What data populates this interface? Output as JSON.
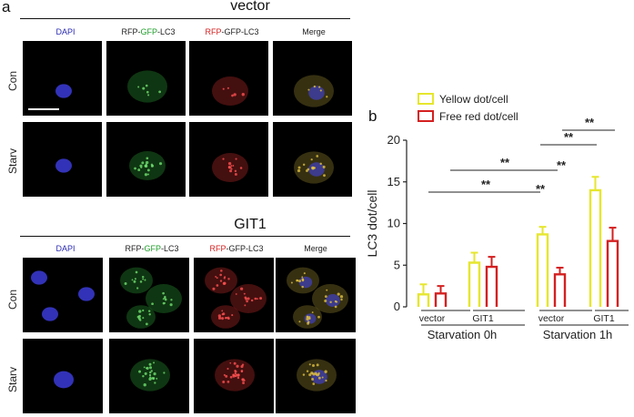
{
  "figure": {
    "panel_a_letter": "a",
    "panel_b_letter": "b",
    "groups": [
      {
        "title": "vector"
      },
      {
        "title": "GIT1"
      }
    ],
    "column_labels": [
      {
        "parts": [
          {
            "text": "DAPI",
            "color": "#2b2bb3"
          }
        ]
      },
      {
        "parts": [
          {
            "text": "RFP-",
            "color": "#222222"
          },
          {
            "text": "GFP",
            "color": "#1f9e2a"
          },
          {
            "text": "-LC3",
            "color": "#222222"
          }
        ]
      },
      {
        "parts": [
          {
            "text": "RFP",
            "color": "#d42020"
          },
          {
            "text": "-GFP-LC3",
            "color": "#222222"
          }
        ]
      },
      {
        "parts": [
          {
            "text": "Merge",
            "color": "#222222"
          }
        ]
      }
    ],
    "row_labels": [
      "Con",
      "Starv"
    ]
  },
  "chart_data": {
    "type": "bar",
    "ylabel": "LC3 dot/cell",
    "ylim": [
      0,
      20
    ],
    "yticks": [
      "0",
      "5",
      "10",
      "15",
      "20"
    ],
    "categories": [
      "vector",
      "GIT1",
      "vector",
      "GIT1"
    ],
    "groups": [
      {
        "label": "Starvation 0h"
      },
      {
        "label": "Starvation 1h"
      }
    ],
    "series": [
      {
        "name": "Yellow dot/cell",
        "color": "#e6e62e",
        "values": [
          1.5,
          5.3,
          8.7,
          14.0
        ],
        "errors": [
          1.2,
          1.2,
          0.9,
          1.6
        ]
      },
      {
        "name": "Free red dot/cell",
        "color": "#d42020",
        "values": [
          1.6,
          4.8,
          3.9,
          7.9
        ],
        "errors": [
          0.9,
          1.2,
          0.8,
          1.6
        ]
      }
    ],
    "significance": [
      "**",
      "**",
      "**",
      "**",
      "**",
      "**"
    ],
    "legend_position": "top-left"
  }
}
